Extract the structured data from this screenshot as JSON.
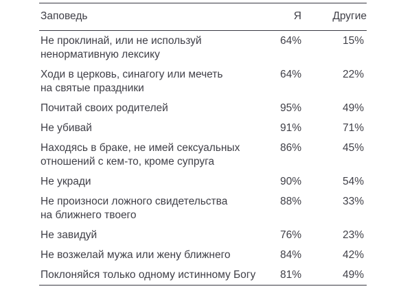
{
  "table": {
    "columns": {
      "commandment": "Заповедь",
      "me": "Я",
      "others": "Другие"
    },
    "rows": [
      {
        "label": "Не проклинай, или не используй\nненормативную лексику",
        "me": "64%",
        "others": "15%"
      },
      {
        "label": "Ходи в церковь, синагогу или мечеть\nна святые праздники",
        "me": "64%",
        "others": "22%"
      },
      {
        "label": "Почитай своих родителей",
        "me": "95%",
        "others": "49%"
      },
      {
        "label": "Не убивай",
        "me": "91%",
        "others": "71%"
      },
      {
        "label": "Находясь в браке, не имей сексуальных\nотношений с кем-то, кроме супруга",
        "me": "86%",
        "others": "45%"
      },
      {
        "label": "Не укради",
        "me": "90%",
        "others": "54%"
      },
      {
        "label": "Не произноси ложного свидетельства\nна ближнего твоего",
        "me": "88%",
        "others": "33%"
      },
      {
        "label": "Не завидуй",
        "me": "76%",
        "others": "23%"
      },
      {
        "label": "Не возжелай мужа или жену ближнего",
        "me": "84%",
        "others": "42%"
      },
      {
        "label": "Поклоняйся только одному истинному Богу",
        "me": "81%",
        "others": "49%"
      }
    ],
    "colors": {
      "text": "#3f3f47",
      "rule": "#383842",
      "background": "#ffffff"
    }
  }
}
